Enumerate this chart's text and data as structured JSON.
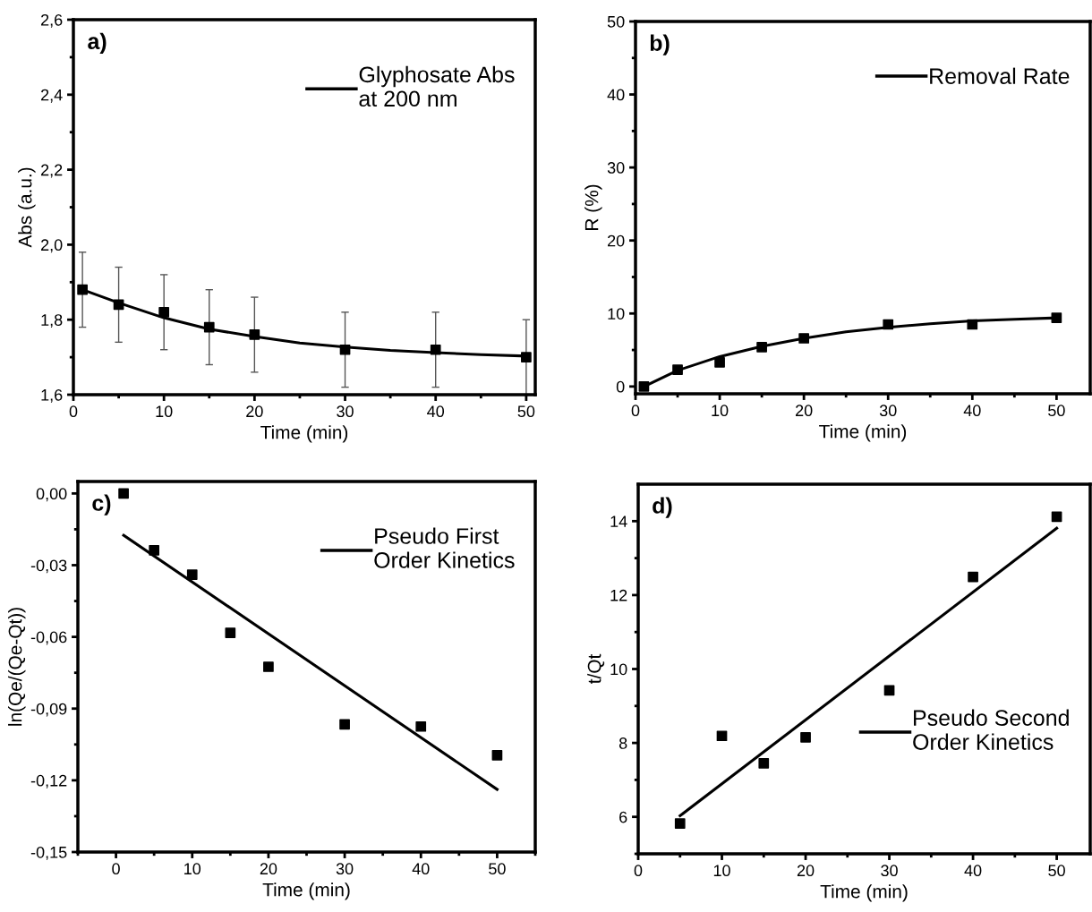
{
  "chart_data": [
    {
      "type": "scatter",
      "annotations": [
        "a)"
      ],
      "xlabel": "Time (min)",
      "ylabel": "Abs (a.u.)",
      "legend": "top right",
      "grid": false,
      "xlim": [
        0,
        51
      ],
      "xticks": [
        0,
        {
          "value": 5,
          "label": null
        },
        10,
        {
          "value": 15,
          "label": null
        },
        20,
        {
          "value": 25,
          "label": null
        },
        30,
        {
          "value": 35,
          "label": null
        },
        40,
        {
          "value": 45,
          "label": null
        },
        50
      ],
      "ylim": [
        1.6,
        2.6
      ],
      "yticks": [
        {
          "value": 1.6,
          "label": "1,6"
        },
        {
          "value": 1.7,
          "label": null
        },
        {
          "value": 1.8,
          "label": "1,8"
        },
        {
          "value": 1.9,
          "label": null
        },
        {
          "value": 2.0,
          "label": "2,0"
        },
        {
          "value": 2.1,
          "label": null
        },
        {
          "value": 2.2,
          "label": "2,2"
        },
        {
          "value": 2.3,
          "label": null
        },
        {
          "value": 2.4,
          "label": "2,4"
        },
        {
          "value": 2.5,
          "label": null
        },
        {
          "value": 2.6,
          "label": "2,6"
        }
      ],
      "series": [
        {
          "marker": "square",
          "color": "#000000",
          "x": [
            1,
            5,
            10,
            15,
            20,
            30,
            40,
            50
          ],
          "values": [
            1.88,
            1.84,
            1.82,
            1.78,
            1.76,
            1.72,
            1.72,
            1.7
          ],
          "errors": [
            0.1,
            0.1,
            0.1,
            0.1,
            0.1,
            0.1,
            0.1,
            0.1
          ]
        },
        {
          "type": "line",
          "name": "Glyphosate Abs\nat 200 nm",
          "color": "#000000",
          "x": [
            1,
            5,
            10,
            15,
            20,
            25,
            30,
            35,
            40,
            45,
            50
          ],
          "values": [
            1.88,
            1.845,
            1.805,
            1.775,
            1.755,
            1.738,
            1.727,
            1.718,
            1.712,
            1.707,
            1.703
          ]
        }
      ]
    },
    {
      "type": "scatter",
      "annotations": [
        "b)"
      ],
      "xlabel": "Time (min)",
      "ylabel": "R (%)",
      "legend": "top right",
      "grid": false,
      "xlim": [
        0,
        54
      ],
      "xticks": [
        0,
        {
          "value": 5,
          "label": null
        },
        10,
        {
          "value": 15,
          "label": null
        },
        20,
        {
          "value": 25,
          "label": null
        },
        30,
        {
          "value": 35,
          "label": null
        },
        40,
        {
          "value": 45,
          "label": null
        },
        50
      ],
      "ylim": [
        -1,
        50
      ],
      "yticks": [
        0,
        {
          "value": 5,
          "label": null
        },
        10,
        {
          "value": 15,
          "label": null
        },
        20,
        {
          "value": 25,
          "label": null
        },
        30,
        {
          "value": 35,
          "label": null
        },
        40,
        {
          "value": 45,
          "label": null
        },
        50
      ],
      "series": [
        {
          "marker": "square",
          "color": "#000000",
          "x": [
            1,
            5,
            10,
            15,
            20,
            30,
            40,
            50
          ],
          "values": [
            0,
            2.3,
            3.3,
            5.4,
            6.6,
            8.5,
            8.5,
            9.4
          ]
        },
        {
          "type": "line",
          "name": "Removal Rate",
          "color": "#000000",
          "x": [
            1,
            5,
            10,
            15,
            20,
            25,
            30,
            35,
            40,
            45,
            50
          ],
          "values": [
            0,
            2.2,
            4.1,
            5.5,
            6.6,
            7.5,
            8.1,
            8.6,
            9.0,
            9.2,
            9.4
          ]
        }
      ]
    },
    {
      "type": "scatter",
      "annotations": [
        "c)"
      ],
      "xlabel": "Time (min)",
      "ylabel": "ln(Qe/(Qe-Qt))",
      "legend": "top right",
      "grid": false,
      "xlim": [
        -5,
        55
      ],
      "xticks": [
        {
          "value": -5,
          "label": null
        },
        0,
        {
          "value": 5,
          "label": null
        },
        10,
        {
          "value": 15,
          "label": null
        },
        20,
        {
          "value": 25,
          "label": null
        },
        30,
        {
          "value": 35,
          "label": null
        },
        40,
        {
          "value": 45,
          "label": null
        },
        50,
        {
          "value": 55,
          "label": null
        }
      ],
      "ylim": [
        -0.15,
        0.005
      ],
      "yticks": [
        {
          "value": -0.15,
          "label": "-0,15"
        },
        {
          "value": -0.135,
          "label": null
        },
        {
          "value": -0.12,
          "label": "-0,12"
        },
        {
          "value": -0.105,
          "label": null
        },
        {
          "value": -0.09,
          "label": "-0,09"
        },
        {
          "value": -0.075,
          "label": null
        },
        {
          "value": -0.06,
          "label": "-0,06"
        },
        {
          "value": -0.045,
          "label": null
        },
        {
          "value": -0.03,
          "label": "-0,03"
        },
        {
          "value": -0.015,
          "label": null
        },
        {
          "value": 0,
          "label": "0,00"
        }
      ],
      "series": [
        {
          "marker": "square",
          "color": "#000000",
          "x": [
            1,
            5,
            10,
            15,
            20,
            30,
            40,
            50
          ],
          "values": [
            0,
            -0.0238,
            -0.034,
            -0.0583,
            -0.0725,
            -0.0966,
            -0.0975,
            -0.1095
          ]
        },
        {
          "type": "line",
          "name": "Pseudo First\nOrder Kinetics",
          "color": "#000000",
          "x": [
            1,
            50
          ],
          "values": [
            -0.0175,
            -0.1238
          ]
        }
      ]
    },
    {
      "type": "scatter",
      "annotations": [
        "d)"
      ],
      "xlabel": "Time (min)",
      "ylabel": "t/Qt",
      "legend": "right",
      "grid": false,
      "xlim": [
        0,
        54
      ],
      "xticks": [
        0,
        {
          "value": 5,
          "label": null
        },
        10,
        {
          "value": 15,
          "label": null
        },
        20,
        {
          "value": 25,
          "label": null
        },
        30,
        {
          "value": 35,
          "label": null
        },
        40,
        {
          "value": 45,
          "label": null
        },
        50
      ],
      "ylim": [
        5,
        15
      ],
      "yticks": [
        {
          "value": 5,
          "label": null
        },
        6,
        {
          "value": 7,
          "label": null
        },
        8,
        {
          "value": 9,
          "label": null
        },
        10,
        {
          "value": 11,
          "label": null
        },
        12,
        {
          "value": 13,
          "label": null
        },
        14
      ],
      "series": [
        {
          "marker": "square",
          "color": "#000000",
          "x": [
            5,
            10,
            15,
            20,
            30,
            40,
            50
          ],
          "values": [
            5.82,
            8.19,
            7.45,
            8.15,
            9.42,
            12.49,
            14.12
          ]
        },
        {
          "type": "line",
          "name": "Pseudo Second\nOrder Kinetics",
          "color": "#000000",
          "x": [
            5,
            50
          ],
          "values": [
            6.03,
            13.81
          ]
        }
      ]
    }
  ]
}
